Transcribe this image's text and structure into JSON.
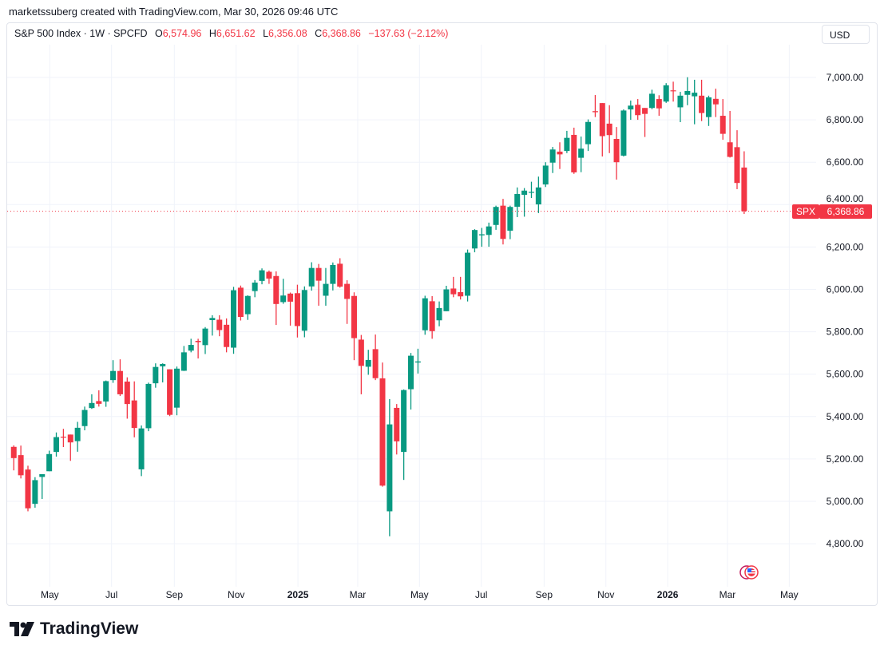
{
  "credit": "marketssuberg created with TradingView.com, Mar 30, 2026 09:46 UTC",
  "legend": {
    "symbol": "S&P 500 Index · 1W · SPCFD",
    "o_label": "O",
    "o": "6,574.96",
    "h_label": "H",
    "h": "6,651.62",
    "l_label": "L",
    "l": "6,356.08",
    "c_label": "C",
    "c": "6,368.86",
    "change": "−137.63 (−2.12%)"
  },
  "currency_button": "USD",
  "price_tag": {
    "symbol": "SPX",
    "value": "6,368.86"
  },
  "brand": "TradingView",
  "colors": {
    "up": "#089981",
    "down": "#f23645",
    "grid": "#f0f3fa"
  },
  "chart_data": {
    "type": "candlestick",
    "interval": "1W",
    "ylim": [
      4640,
      7060
    ],
    "y_ticks": [
      "4,800.00",
      "5,000.00",
      "5,200.00",
      "5,400.00",
      "5,600.00",
      "5,800.00",
      "6,000.00",
      "6,200.00",
      "6,400.00",
      "6,600.00",
      "6,800.00",
      "7,000.00"
    ],
    "x_ticks": [
      {
        "label": "May",
        "date": "2024-05-01"
      },
      {
        "label": "Jul",
        "date": "2024-07-01"
      },
      {
        "label": "Sep",
        "date": "2024-09-01"
      },
      {
        "label": "Nov",
        "date": "2024-11-01"
      },
      {
        "label": "2025",
        "date": "2025-01-01",
        "bold": true
      },
      {
        "label": "Mar",
        "date": "2025-03-01"
      },
      {
        "label": "May",
        "date": "2025-05-01"
      },
      {
        "label": "Jul",
        "date": "2025-07-01"
      },
      {
        "label": "Sep",
        "date": "2025-09-01"
      },
      {
        "label": "Nov",
        "date": "2025-11-01"
      },
      {
        "label": "2026",
        "date": "2026-01-01",
        "bold": true
      },
      {
        "label": "Mar",
        "date": "2026-03-01"
      },
      {
        "label": "May",
        "date": "2026-05-01"
      }
    ],
    "last_price": 6368.86,
    "grid": true,
    "candles": [
      [
        "2024-03-25",
        5219,
        5265,
        5204,
        5254
      ],
      [
        "2024-04-01",
        5257,
        5264,
        5146,
        5204
      ],
      [
        "2024-04-08",
        5218,
        5263,
        5108,
        5123
      ],
      [
        "2024-04-15",
        5150,
        5168,
        4953,
        4967
      ],
      [
        "2024-04-22",
        4988,
        5114,
        4970,
        5100
      ],
      [
        "2024-04-29",
        5115,
        5123,
        5011,
        5128
      ],
      [
        "2024-05-06",
        5142,
        5239,
        5142,
        5223
      ],
      [
        "2024-05-13",
        5233,
        5325,
        5211,
        5303
      ],
      [
        "2024-05-20",
        5305,
        5342,
        5256,
        5304
      ],
      [
        "2024-05-27",
        5315,
        5315,
        5191,
        5278
      ],
      [
        "2024-06-03",
        5284,
        5375,
        5234,
        5347
      ],
      [
        "2024-06-10",
        5355,
        5447,
        5335,
        5431
      ],
      [
        "2024-06-17",
        5440,
        5505,
        5436,
        5464
      ],
      [
        "2024-06-24",
        5473,
        5524,
        5447,
        5460
      ],
      [
        "2024-07-01",
        5471,
        5570,
        5446,
        5567
      ],
      [
        "2024-07-08",
        5572,
        5666,
        5559,
        5615
      ],
      [
        "2024-07-15",
        5615,
        5670,
        5497,
        5505
      ],
      [
        "2024-07-22",
        5565,
        5585,
        5390,
        5459
      ],
      [
        "2024-07-29",
        5476,
        5566,
        5302,
        5346
      ],
      [
        "2024-08-05",
        5151,
        5358,
        5119,
        5344
      ],
      [
        "2024-08-12",
        5345,
        5560,
        5331,
        5554
      ],
      [
        "2024-08-19",
        5557,
        5651,
        5536,
        5634
      ],
      [
        "2024-08-26",
        5637,
        5651,
        5561,
        5648
      ],
      [
        "2024-09-02",
        5623,
        5623,
        5402,
        5408
      ],
      [
        "2024-09-09",
        5442,
        5636,
        5406,
        5626
      ],
      [
        "2024-09-16",
        5616,
        5733,
        5615,
        5703
      ],
      [
        "2024-09-23",
        5711,
        5767,
        5703,
        5738
      ],
      [
        "2024-09-30",
        5757,
        5767,
        5674,
        5751
      ],
      [
        "2024-10-07",
        5737,
        5822,
        5695,
        5815
      ],
      [
        "2024-10-14",
        5855,
        5878,
        5782,
        5865
      ],
      [
        "2024-10-21",
        5857,
        5878,
        5779,
        5808
      ],
      [
        "2024-10-28",
        5833,
        5863,
        5703,
        5728
      ],
      [
        "2024-11-04",
        5725,
        6012,
        5696,
        5996
      ],
      [
        "2024-11-11",
        6008,
        6018,
        5853,
        5870
      ],
      [
        "2024-11-18",
        5883,
        5972,
        5856,
        5969
      ],
      [
        "2024-11-25",
        5992,
        6044,
        5963,
        6032
      ],
      [
        "2024-12-02",
        6040,
        6099,
        6024,
        6090
      ],
      [
        "2024-12-09",
        6083,
        6089,
        6026,
        6051
      ],
      [
        "2024-12-16",
        6063,
        6085,
        5832,
        5931
      ],
      [
        "2024-12-23",
        5940,
        6050,
        5932,
        5971
      ],
      [
        "2024-12-30",
        5980,
        5985,
        5829,
        5942
      ],
      [
        "2025-01-06",
        5982,
        6022,
        5773,
        5827
      ],
      [
        "2025-01-13",
        5805,
        6014,
        5774,
        5997
      ],
      [
        "2025-01-20",
        6014,
        6128,
        5994,
        6101
      ],
      [
        "2025-01-27",
        6101,
        6120,
        5923,
        6041
      ],
      [
        "2025-02-03",
        5970,
        6101,
        5923,
        6026
      ],
      [
        "2025-02-10",
        6026,
        6127,
        5995,
        6115
      ],
      [
        "2025-02-17",
        6121,
        6147,
        6008,
        6013
      ],
      [
        "2025-02-24",
        6026,
        6043,
        5837,
        5955
      ],
      [
        "2025-03-03",
        5969,
        5986,
        5666,
        5770
      ],
      [
        "2025-03-10",
        5763,
        5785,
        5505,
        5639
      ],
      [
        "2025-03-17",
        5635,
        5715,
        5597,
        5667
      ],
      [
        "2025-03-24",
        5718,
        5787,
        5572,
        5581
      ],
      [
        "2025-03-31",
        5580,
        5655,
        5069,
        5074
      ],
      [
        "2025-04-07",
        4953,
        5482,
        4835,
        5363
      ],
      [
        "2025-04-14",
        5441,
        5459,
        5221,
        5283
      ],
      [
        "2025-04-21",
        5233,
        5528,
        5101,
        5525
      ],
      [
        "2025-04-28",
        5529,
        5700,
        5433,
        5687
      ],
      [
        "2025-05-05",
        5655,
        5720,
        5603,
        5660
      ],
      [
        "2025-05-12",
        5807,
        5970,
        5786,
        5958
      ],
      [
        "2025-05-19",
        5944,
        5968,
        5767,
        5803
      ],
      [
        "2025-05-26",
        5854,
        5943,
        5826,
        5912
      ],
      [
        "2025-06-02",
        5897,
        6017,
        5897,
        6000
      ],
      [
        "2025-06-09",
        6004,
        6059,
        5963,
        5977
      ],
      [
        "2025-06-16",
        5987,
        6059,
        5952,
        5967
      ],
      [
        "2025-06-23",
        5970,
        6188,
        5943,
        6173
      ],
      [
        "2025-06-30",
        6193,
        6284,
        6175,
        6280
      ],
      [
        "2025-07-07",
        6255,
        6290,
        6201,
        6260
      ],
      [
        "2025-07-14",
        6257,
        6315,
        6201,
        6297
      ],
      [
        "2025-07-21",
        6304,
        6395,
        6281,
        6389
      ],
      [
        "2025-07-28",
        6395,
        6427,
        6212,
        6238
      ],
      [
        "2025-08-04",
        6277,
        6395,
        6237,
        6389
      ],
      [
        "2025-08-11",
        6390,
        6481,
        6341,
        6450
      ],
      [
        "2025-08-18",
        6446,
        6478,
        6343,
        6466
      ],
      [
        "2025-08-25",
        6457,
        6508,
        6431,
        6460
      ],
      [
        "2025-09-01",
        6401,
        6532,
        6360,
        6481
      ],
      [
        "2025-09-08",
        6495,
        6600,
        6483,
        6584
      ],
      [
        "2025-09-15",
        6598,
        6672,
        6549,
        6660
      ],
      [
        "2025-09-22",
        6650,
        6694,
        6568,
        6637
      ],
      [
        "2025-09-29",
        6653,
        6748,
        6643,
        6715
      ],
      [
        "2025-10-06",
        6729,
        6763,
        6545,
        6552
      ],
      [
        "2025-10-13",
        6621,
        6721,
        6553,
        6664
      ],
      [
        "2025-10-20",
        6685,
        6802,
        6653,
        6790
      ],
      [
        "2025-10-27",
        6841,
        6917,
        6813,
        6836
      ],
      [
        "2025-11-03",
        6879,
        6879,
        6627,
        6723
      ],
      [
        "2025-11-10",
        6782,
        6869,
        6643,
        6728
      ],
      [
        "2025-11-17",
        6710,
        6766,
        6518,
        6600
      ],
      [
        "2025-11-24",
        6631,
        6849,
        6627,
        6844
      ],
      [
        "2025-12-01",
        6849,
        6891,
        6800,
        6867
      ],
      [
        "2025-12-08",
        6871,
        6898,
        6800,
        6822
      ],
      [
        "2025-12-15",
        6856,
        6856,
        6719,
        6828
      ],
      [
        "2025-12-22",
        6856,
        6942,
        6850,
        6923
      ],
      [
        "2025-12-29",
        6898,
        6916,
        6819,
        6854
      ],
      [
        "2026-01-05",
        6886,
        6973,
        6880,
        6963
      ],
      [
        "2026-01-12",
        6939,
        6980,
        6886,
        6935
      ],
      [
        "2026-01-19",
        6859,
        6932,
        6789,
        6914
      ],
      [
        "2026-01-26",
        6918,
        7001,
        6869,
        6936
      ],
      [
        "2026-02-02",
        6911,
        6989,
        6779,
        6928
      ],
      [
        "2026-02-09",
        6914,
        6989,
        6794,
        6832
      ],
      [
        "2026-02-16",
        6813,
        6914,
        6771,
        6906
      ],
      [
        "2026-02-23",
        6899,
        6947,
        6813,
        6873
      ],
      [
        "2026-03-02",
        6819,
        6898,
        6706,
        6734
      ],
      [
        "2026-03-09",
        6694,
        6842,
        6622,
        6625
      ],
      [
        "2026-03-16",
        6671,
        6751,
        6473,
        6502
      ],
      [
        "2026-03-23",
        6574.96,
        6651.62,
        6356.08,
        6368.86
      ]
    ]
  }
}
